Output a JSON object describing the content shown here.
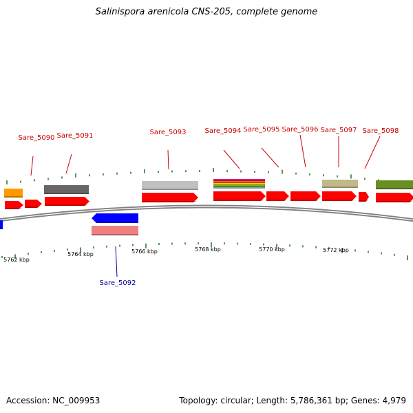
{
  "title": "Salinispora arenicola CNS-205, complete genome",
  "footer": {
    "accession": "Accession: NC_009953",
    "summary": "Topology: circular; Length: 5,786,361 bp; Genes: 4,979"
  },
  "colors": {
    "forward_label": "#cc0000",
    "reverse_label": "#000099",
    "cds": "#ff0000",
    "backbone": "#808080",
    "tick": "#2e7d32"
  },
  "kbp_labels": [
    "5762 kbp",
    "5764 kbp",
    "5766 kbp",
    "5768 kbp",
    "5770 kbp",
    "5772 kbp"
  ],
  "gene_labels": [
    {
      "text": "Sare_5090",
      "strand": "forward"
    },
    {
      "text": "Sare_5091",
      "strand": "forward"
    },
    {
      "text": "Sare_5093",
      "strand": "forward"
    },
    {
      "text": "Sare_5094",
      "strand": "forward"
    },
    {
      "text": "Sare_5095",
      "strand": "forward"
    },
    {
      "text": "Sare_5096",
      "strand": "forward"
    },
    {
      "text": "Sare_5097",
      "strand": "forward"
    },
    {
      "text": "Sare_5098",
      "strand": "forward"
    },
    {
      "text": "Sare_5092",
      "strand": "reverse"
    }
  ]
}
